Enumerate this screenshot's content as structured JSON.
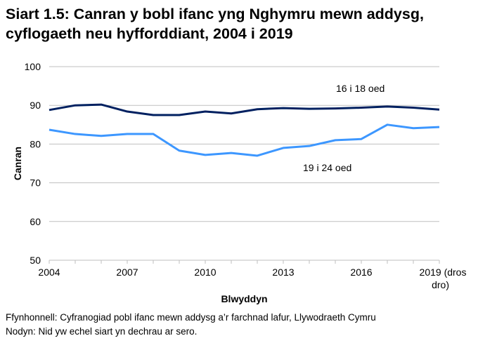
{
  "title_line1": "Siart 1.5: Canran y bobl ifanc yng Nghymru mewn addysg,",
  "title_line2": "cyflogaeth neu hyfforddiant, 2004 i 2019",
  "source": "Ffynhonnell: Cyfranogiad pobl ifanc mewn addysg a’r farchnad lafur, Llywodraeth Cymru",
  "note": "Nodyn: Nid yw echel siart yn dechrau ar sero.",
  "chart_data": {
    "type": "line",
    "xlabel": "Blwyddyn",
    "ylabel": "Canran",
    "ylim": [
      50,
      100
    ],
    "yticks": [
      50,
      60,
      70,
      80,
      90,
      100
    ],
    "x": [
      2004,
      2005,
      2006,
      2007,
      2008,
      2009,
      2010,
      2011,
      2012,
      2013,
      2014,
      2015,
      2016,
      2017,
      2018,
      2019
    ],
    "xtick_labels": [
      "2004",
      "2007",
      "2010",
      "2013",
      "2016",
      "2019 (dros",
      "dro)"
    ],
    "grid": "horizontal",
    "series": [
      {
        "name": "16 i 18 oed",
        "color": "#002060",
        "values": [
          88.8,
          90.0,
          90.2,
          88.4,
          87.5,
          87.5,
          88.4,
          87.9,
          89.0,
          89.3,
          89.1,
          89.2,
          89.4,
          89.7,
          89.4,
          88.9
        ]
      },
      {
        "name": "19 i 24 oed",
        "color": "#3d97ff",
        "values": [
          83.7,
          82.6,
          82.1,
          82.6,
          82.6,
          78.3,
          77.2,
          77.7,
          77.0,
          79.0,
          79.5,
          81.0,
          81.3,
          85.0,
          84.1,
          84.4
        ]
      }
    ]
  }
}
